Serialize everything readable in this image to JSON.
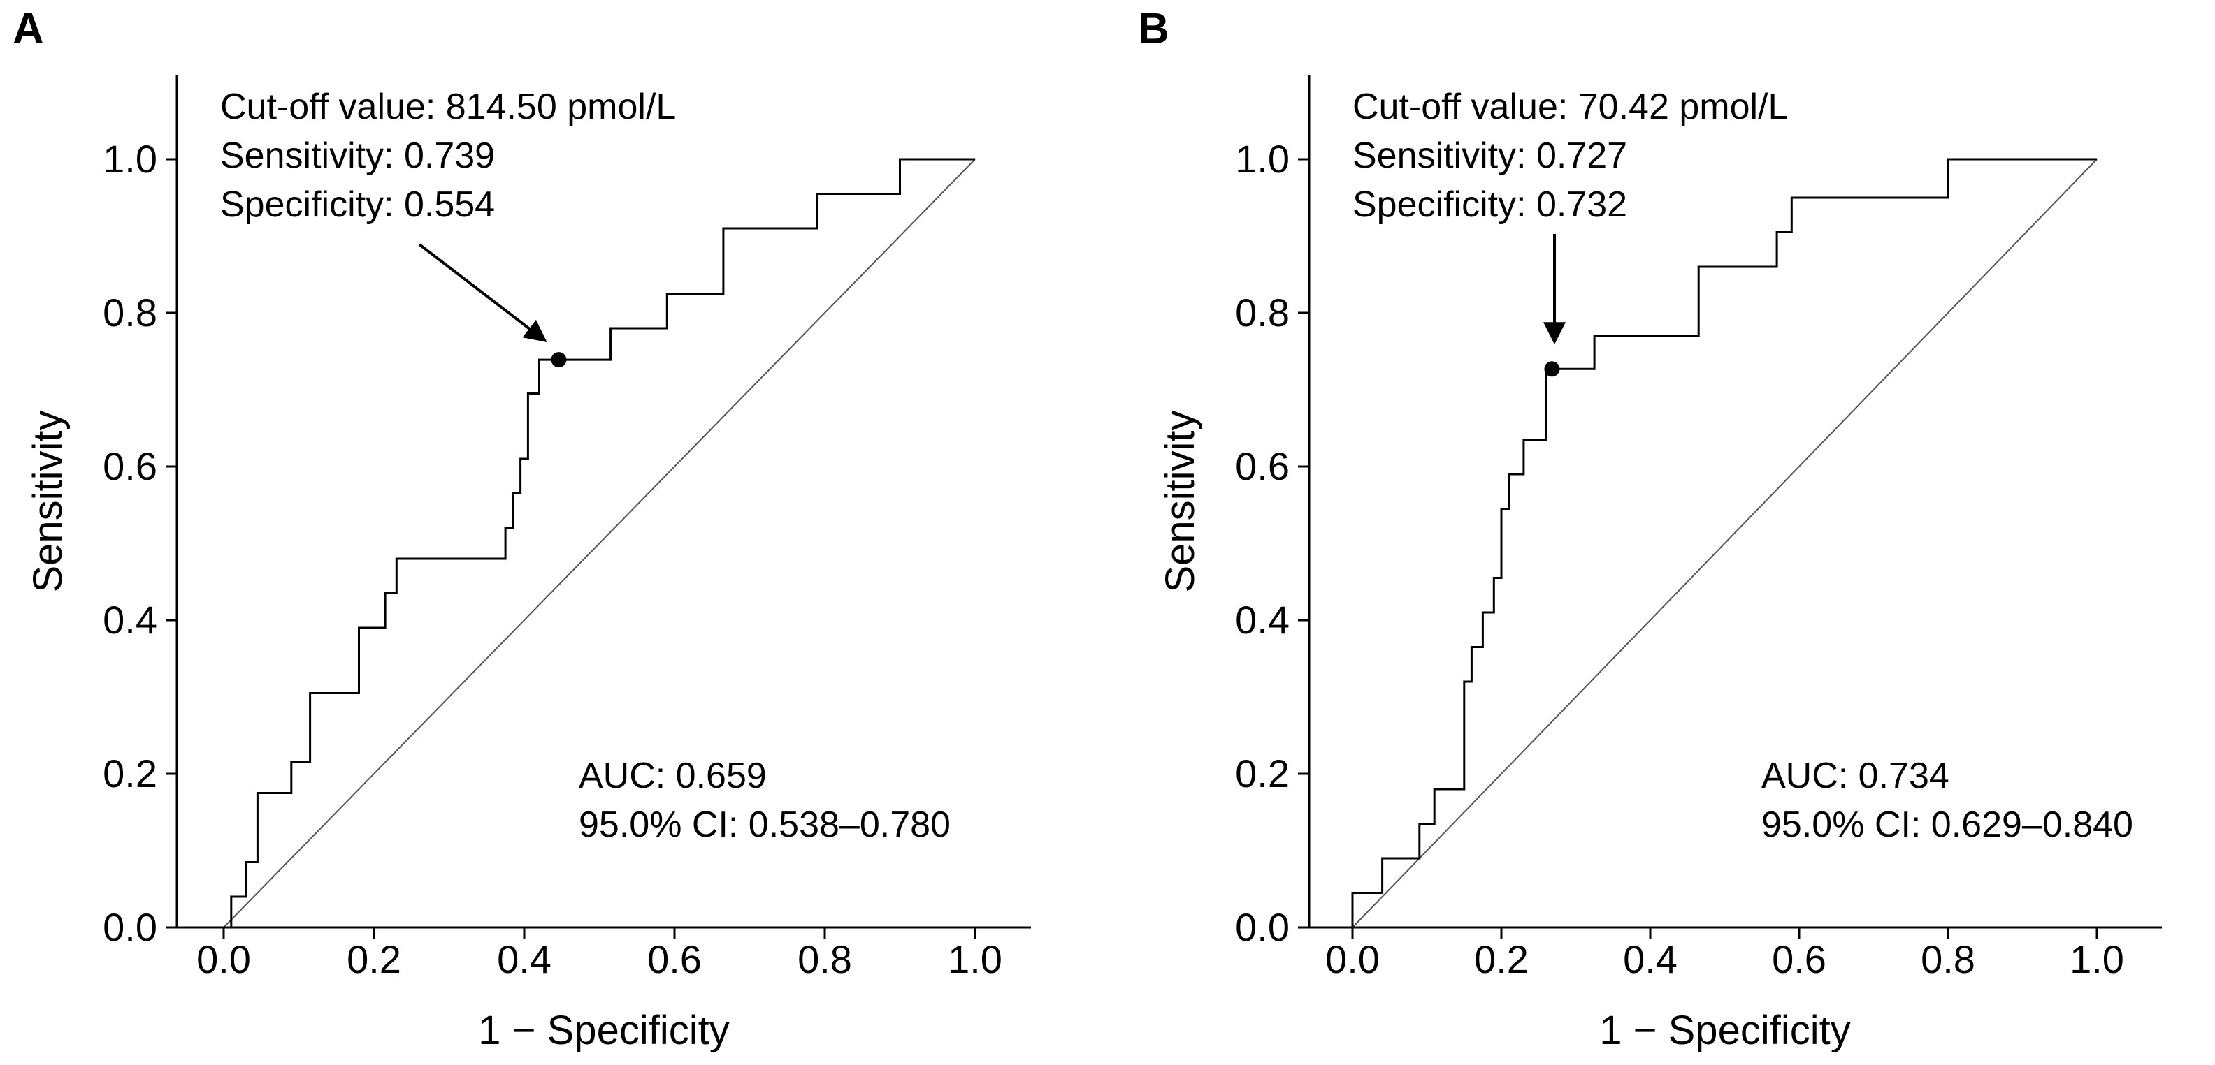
{
  "figure": {
    "colors": {
      "roc": "#000000",
      "diagonal": "#555555",
      "axis": "#000000",
      "background": "#ffffff"
    }
  },
  "chart_data": [
    {
      "panel": "A",
      "type": "line",
      "title": "",
      "xlabel": "1 − Specificity",
      "ylabel": "Sensitivity",
      "xlim": [
        -0.05,
        1.05
      ],
      "ylim": [
        0,
        1.1
      ],
      "xticks": [
        "0.0",
        "0.2",
        "0.4",
        "0.6",
        "0.8",
        "1.0"
      ],
      "yticks": [
        "0.0",
        "0.2",
        "0.4",
        "0.6",
        "0.8",
        "1.0"
      ],
      "grid": false,
      "series": [
        {
          "name": "ROC curve",
          "x": [
            0.0,
            0.01,
            0.01,
            0.03,
            0.03,
            0.045,
            0.045,
            0.09,
            0.09,
            0.115,
            0.115,
            0.18,
            0.18,
            0.215,
            0.215,
            0.23,
            0.23,
            0.375,
            0.375,
            0.385,
            0.385,
            0.395,
            0.395,
            0.405,
            0.405,
            0.42,
            0.42,
            0.445,
            0.445,
            0.515,
            0.515,
            0.59,
            0.59,
            0.665,
            0.665,
            0.79,
            0.79,
            0.9,
            0.9,
            1.0
          ],
          "y": [
            0.0,
            0.0,
            0.04,
            0.04,
            0.085,
            0.085,
            0.175,
            0.175,
            0.215,
            0.215,
            0.305,
            0.305,
            0.39,
            0.39,
            0.435,
            0.435,
            0.48,
            0.48,
            0.52,
            0.52,
            0.565,
            0.565,
            0.61,
            0.61,
            0.695,
            0.695,
            0.739,
            0.739,
            0.739,
            0.739,
            0.78,
            0.78,
            0.825,
            0.825,
            0.91,
            0.91,
            0.955,
            0.955,
            1.0,
            1.0
          ]
        },
        {
          "name": "Reference line",
          "x": [
            0,
            1
          ],
          "y": [
            0,
            1
          ]
        }
      ],
      "cutoff_point": {
        "x": 0.446,
        "y": 0.739
      },
      "annotation_cutoff": [
        "Cut-off value: 814.50 pmol/L",
        "Sensitivity: 0.739",
        "Specificity: 0.554"
      ],
      "annotation_auc": [
        "AUC: 0.659",
        "95.0% CI: 0.538–0.780"
      ]
    },
    {
      "panel": "B",
      "type": "line",
      "title": "",
      "xlabel": "1 − Specificity",
      "ylabel": "Sensitivity",
      "xlim": [
        -0.05,
        1.05
      ],
      "ylim": [
        0,
        1.1
      ],
      "xticks": [
        "0.0",
        "0.2",
        "0.4",
        "0.6",
        "0.8",
        "1.0"
      ],
      "yticks": [
        "0.0",
        "0.2",
        "0.4",
        "0.6",
        "0.8",
        "1.0"
      ],
      "grid": false,
      "series": [
        {
          "name": "ROC curve",
          "x": [
            0.0,
            0.0,
            0.04,
            0.04,
            0.09,
            0.09,
            0.11,
            0.11,
            0.15,
            0.15,
            0.16,
            0.16,
            0.175,
            0.175,
            0.19,
            0.19,
            0.2,
            0.2,
            0.21,
            0.21,
            0.23,
            0.23,
            0.26,
            0.26,
            0.268,
            0.268,
            0.325,
            0.325,
            0.465,
            0.465,
            0.57,
            0.57,
            0.59,
            0.59,
            0.8,
            0.8,
            1.0
          ],
          "y": [
            0.0,
            0.045,
            0.045,
            0.09,
            0.09,
            0.135,
            0.135,
            0.18,
            0.18,
            0.32,
            0.32,
            0.365,
            0.365,
            0.41,
            0.41,
            0.455,
            0.455,
            0.545,
            0.545,
            0.59,
            0.59,
            0.635,
            0.635,
            0.727,
            0.727,
            0.727,
            0.727,
            0.77,
            0.77,
            0.86,
            0.86,
            0.905,
            0.905,
            0.95,
            0.95,
            1.0,
            1.0
          ]
        },
        {
          "name": "Reference line",
          "x": [
            0,
            1
          ],
          "y": [
            0,
            1
          ]
        }
      ],
      "cutoff_point": {
        "x": 0.268,
        "y": 0.727
      },
      "annotation_cutoff": [
        "Cut-off value: 70.42 pmol/L",
        "Sensitivity: 0.727",
        "Specificity: 0.732"
      ],
      "annotation_auc": [
        "AUC: 0.734",
        "95.0% CI: 0.629–0.840"
      ]
    }
  ]
}
